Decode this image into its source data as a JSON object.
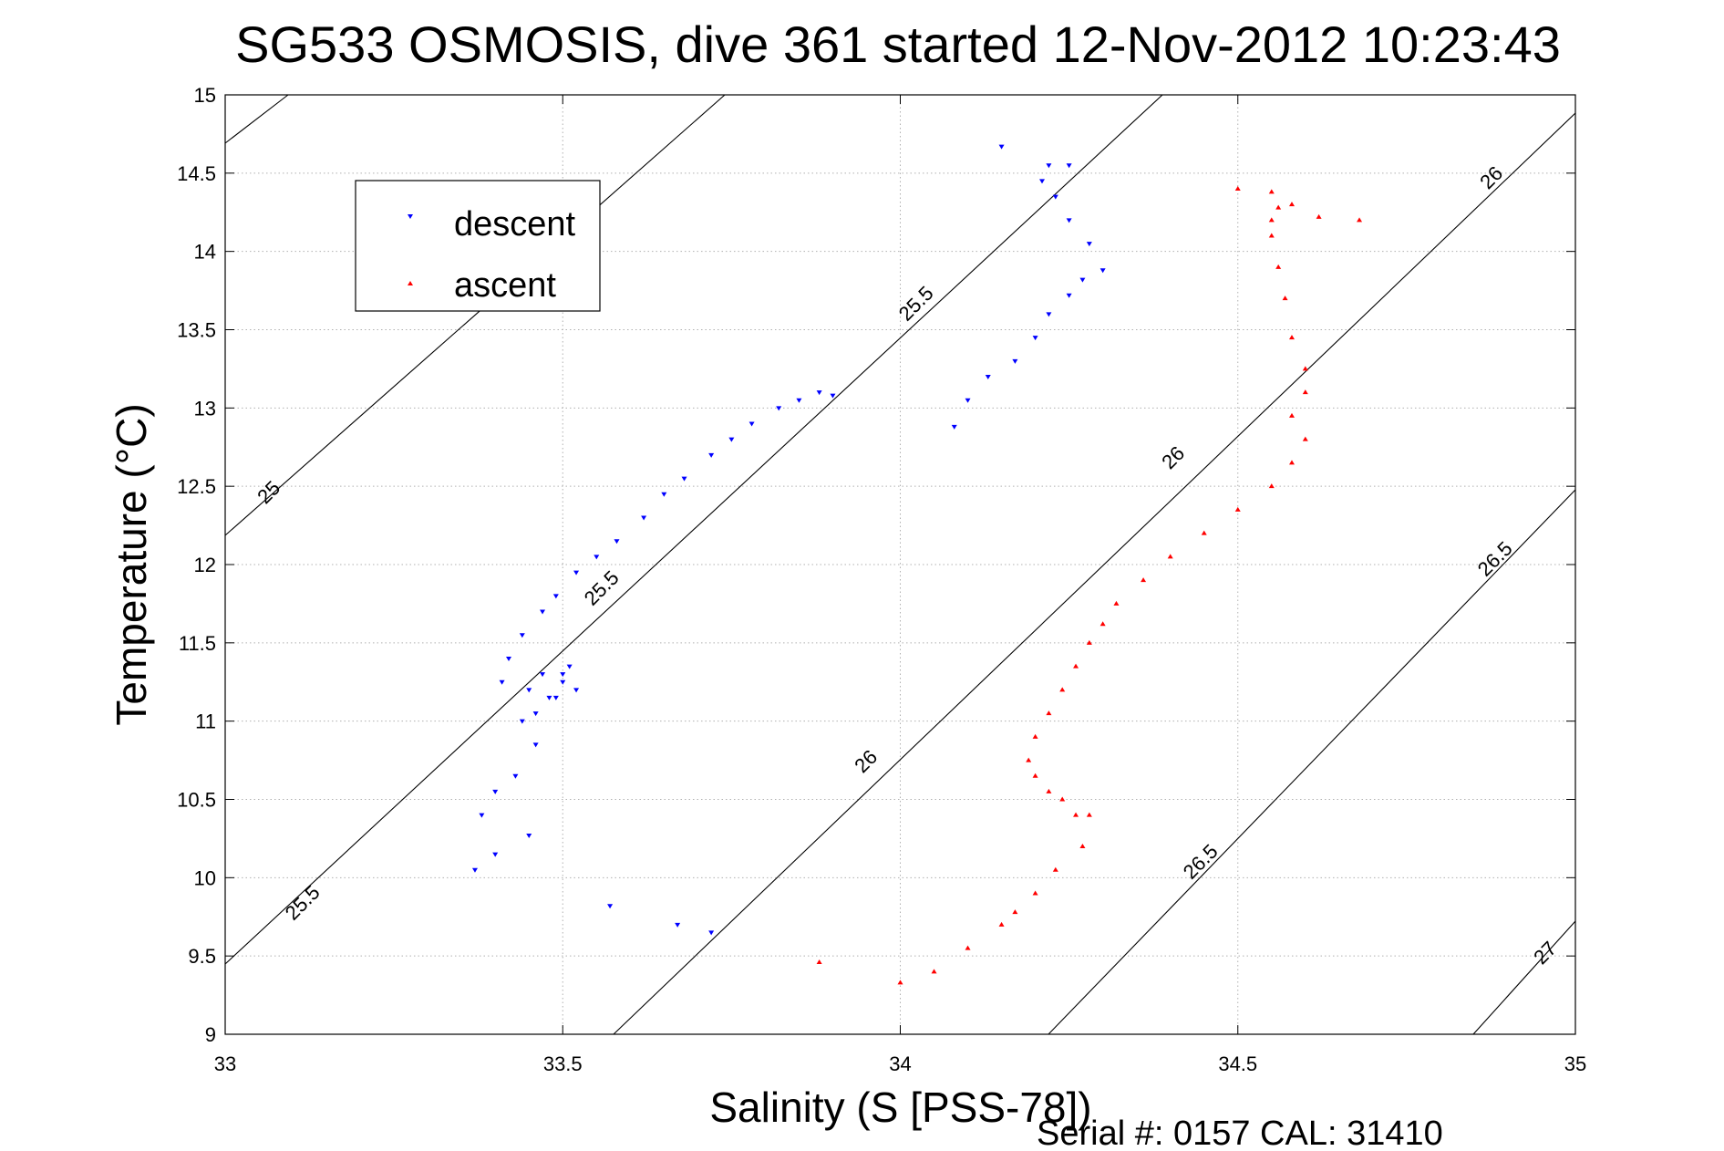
{
  "chart_data": {
    "type": "scatter",
    "title": "SG533 OSMOSIS, dive 361 started 12-Nov-2012 10:23:43",
    "xlabel": "Salinity (S [PSS-78])",
    "ylabel": "Temperature (°C)",
    "xlim": [
      33,
      35
    ],
    "ylim": [
      9,
      15
    ],
    "xticks": [
      "33",
      "33.5",
      "34",
      "34.5",
      "35"
    ],
    "yticks": [
      "9",
      "9.5",
      "10",
      "10.5",
      "11",
      "11.5",
      "12",
      "12.5",
      "13",
      "13.5",
      "14",
      "14.5",
      "15"
    ],
    "grid": true,
    "legend_position": "top-left",
    "footer": "Serial #: 0157  CAL: 31410",
    "series": [
      {
        "name": "descent",
        "color": "#0000ff",
        "marker": "triangle-down",
        "x": [
          33.37,
          33.4,
          33.45,
          33.38,
          33.4,
          33.43,
          33.46,
          33.44,
          33.46,
          33.48,
          33.45,
          33.47,
          33.5,
          33.51,
          33.52,
          33.49,
          33.5,
          33.41,
          33.42,
          33.44,
          33.47,
          33.49,
          33.52,
          33.55,
          33.58,
          33.62,
          33.65,
          33.68,
          33.72,
          33.75,
          33.78,
          33.82,
          33.85,
          33.88,
          33.9,
          33.57,
          33.67,
          33.72,
          34.08,
          34.1,
          34.13,
          34.17,
          34.2,
          34.22,
          34.25,
          34.27,
          34.3,
          34.28,
          34.25,
          34.23,
          34.21,
          34.22,
          34.25,
          34.15
        ],
        "y": [
          10.05,
          10.15,
          10.27,
          10.4,
          10.55,
          10.65,
          10.85,
          11.0,
          11.05,
          11.15,
          11.2,
          11.3,
          11.25,
          11.35,
          11.2,
          11.15,
          11.3,
          11.25,
          11.4,
          11.55,
          11.7,
          11.8,
          11.95,
          12.05,
          12.15,
          12.3,
          12.45,
          12.55,
          12.7,
          12.8,
          12.9,
          13.0,
          13.05,
          13.1,
          13.08,
          9.82,
          9.7,
          9.65,
          12.88,
          13.05,
          13.2,
          13.3,
          13.45,
          13.6,
          13.72,
          13.82,
          13.88,
          14.05,
          14.2,
          14.35,
          14.45,
          14.55,
          14.55,
          14.67
        ]
      },
      {
        "name": "ascent",
        "color": "#ff0000",
        "marker": "triangle-up",
        "x": [
          34.0,
          34.05,
          34.1,
          34.15,
          34.17,
          34.2,
          34.23,
          34.27,
          34.28,
          34.26,
          34.24,
          34.22,
          34.2,
          34.19,
          34.2,
          34.22,
          34.24,
          34.26,
          34.28,
          34.3,
          34.32,
          34.36,
          34.4,
          34.45,
          34.5,
          34.55,
          34.58,
          34.6,
          34.58,
          34.6,
          34.6,
          34.58,
          34.57,
          34.56,
          34.55,
          34.55,
          34.56,
          34.58,
          34.62,
          34.68,
          34.5,
          34.55,
          33.88
        ],
        "y": [
          9.33,
          9.4,
          9.55,
          9.7,
          9.78,
          9.9,
          10.05,
          10.2,
          10.4,
          10.4,
          10.5,
          10.55,
          10.65,
          10.75,
          10.9,
          11.05,
          11.2,
          11.35,
          11.5,
          11.62,
          11.75,
          11.9,
          12.05,
          12.2,
          12.35,
          12.5,
          12.65,
          12.8,
          12.95,
          13.1,
          13.25,
          13.45,
          13.7,
          13.9,
          14.1,
          14.2,
          14.28,
          14.3,
          14.22,
          14.2,
          14.4,
          14.38,
          9.46
        ]
      }
    ],
    "sigma_contours": [
      "25",
      "25.5",
      "26",
      "26.5",
      "27"
    ]
  }
}
